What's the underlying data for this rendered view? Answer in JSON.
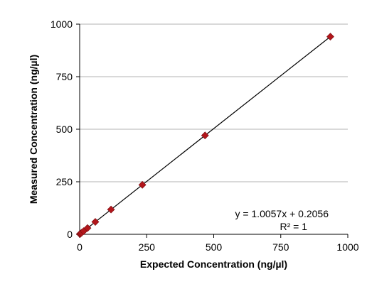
{
  "chart_data": {
    "type": "scatter",
    "title": "",
    "xlabel": "Expected Concentration (ng/µl)",
    "ylabel": "Measured Concentration (ng/µl)",
    "xlim": [
      0,
      1000
    ],
    "ylim": [
      0,
      1000
    ],
    "xticks": [
      0,
      250,
      500,
      750,
      1000
    ],
    "yticks": [
      0,
      250,
      500,
      750,
      1000
    ],
    "xtick_labels": [
      "0",
      "250",
      "500",
      "750",
      "1000"
    ],
    "ytick_labels": [
      "0",
      "250",
      "500",
      "750",
      "1000"
    ],
    "grid": "horizontal",
    "marker_color": "#b2161b",
    "series": [
      {
        "x": [
          0.9,
          1.8,
          3.6,
          7.3,
          14.6,
          29.2,
          58.4,
          116.9,
          233.8,
          467.5,
          935
        ],
        "y": [
          1.2,
          2.1,
          3.8,
          7.5,
          14.9,
          29.6,
          59.0,
          117.8,
          235.4,
          470.4,
          940.5
        ]
      }
    ],
    "trendline": {
      "slope": 1.0057,
      "intercept": 0.2056,
      "x_range": [
        0,
        935
      ],
      "equation": "y = 1.0057x + 0.2056",
      "r_squared": "R² = 1"
    }
  }
}
